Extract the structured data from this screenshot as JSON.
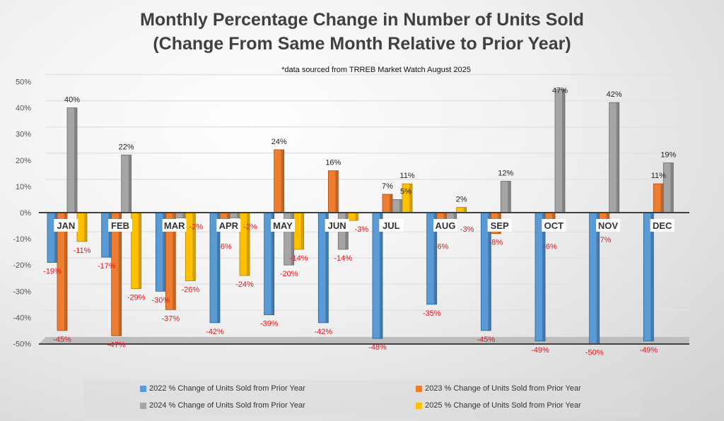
{
  "chart_data": {
    "type": "bar",
    "title": "Monthly Percentage Change in Number of Units Sold",
    "subtitle": "(Change From Same Month Relative to Prior Year)",
    "note": "*data sourced from TRREB Market Watch August 2025",
    "xlabel": "",
    "ylabel": "",
    "ylim": [
      -50,
      50
    ],
    "yticks": [
      "50%",
      "40%",
      "30%",
      "20%",
      "10%",
      "0%",
      "-10%",
      "-20%",
      "-30%",
      "-40%",
      "-50%"
    ],
    "categories": [
      "JAN",
      "FEB",
      "MAR",
      "APR",
      "MAY",
      "JUN",
      "JUL",
      "AUG",
      "SEP",
      "OCT",
      "NOV",
      "DEC"
    ],
    "legend_position": "bottom",
    "series": [
      {
        "name": "2022 % Change of Units Sold from Prior Year",
        "color": "#5b9bd5",
        "values": [
          -19,
          -17,
          -30,
          -42,
          -39,
          -42,
          -48,
          -35,
          -45,
          -49,
          -50,
          -49
        ]
      },
      {
        "name": "2023 % Change of Units Sold from Prior Year",
        "color": "#ed7d31",
        "values": [
          -45,
          -47,
          -37,
          -6,
          24,
          16,
          7,
          -6,
          -8,
          -6,
          -7,
          11
        ]
      },
      {
        "name": "2024 % Change of Units Sold from Prior Year",
        "color": "#a5a5a5",
        "values": [
          40,
          22,
          -2,
          -2,
          -20,
          -14,
          5,
          -3,
          12,
          47,
          42,
          19
        ]
      },
      {
        "name": "2025 % Change of Units Sold from Prior Year",
        "color": "#ffc000",
        "values": [
          -11,
          -29,
          -26,
          -24,
          -14,
          -3,
          11,
          2,
          null,
          null,
          null,
          null
        ]
      }
    ]
  }
}
